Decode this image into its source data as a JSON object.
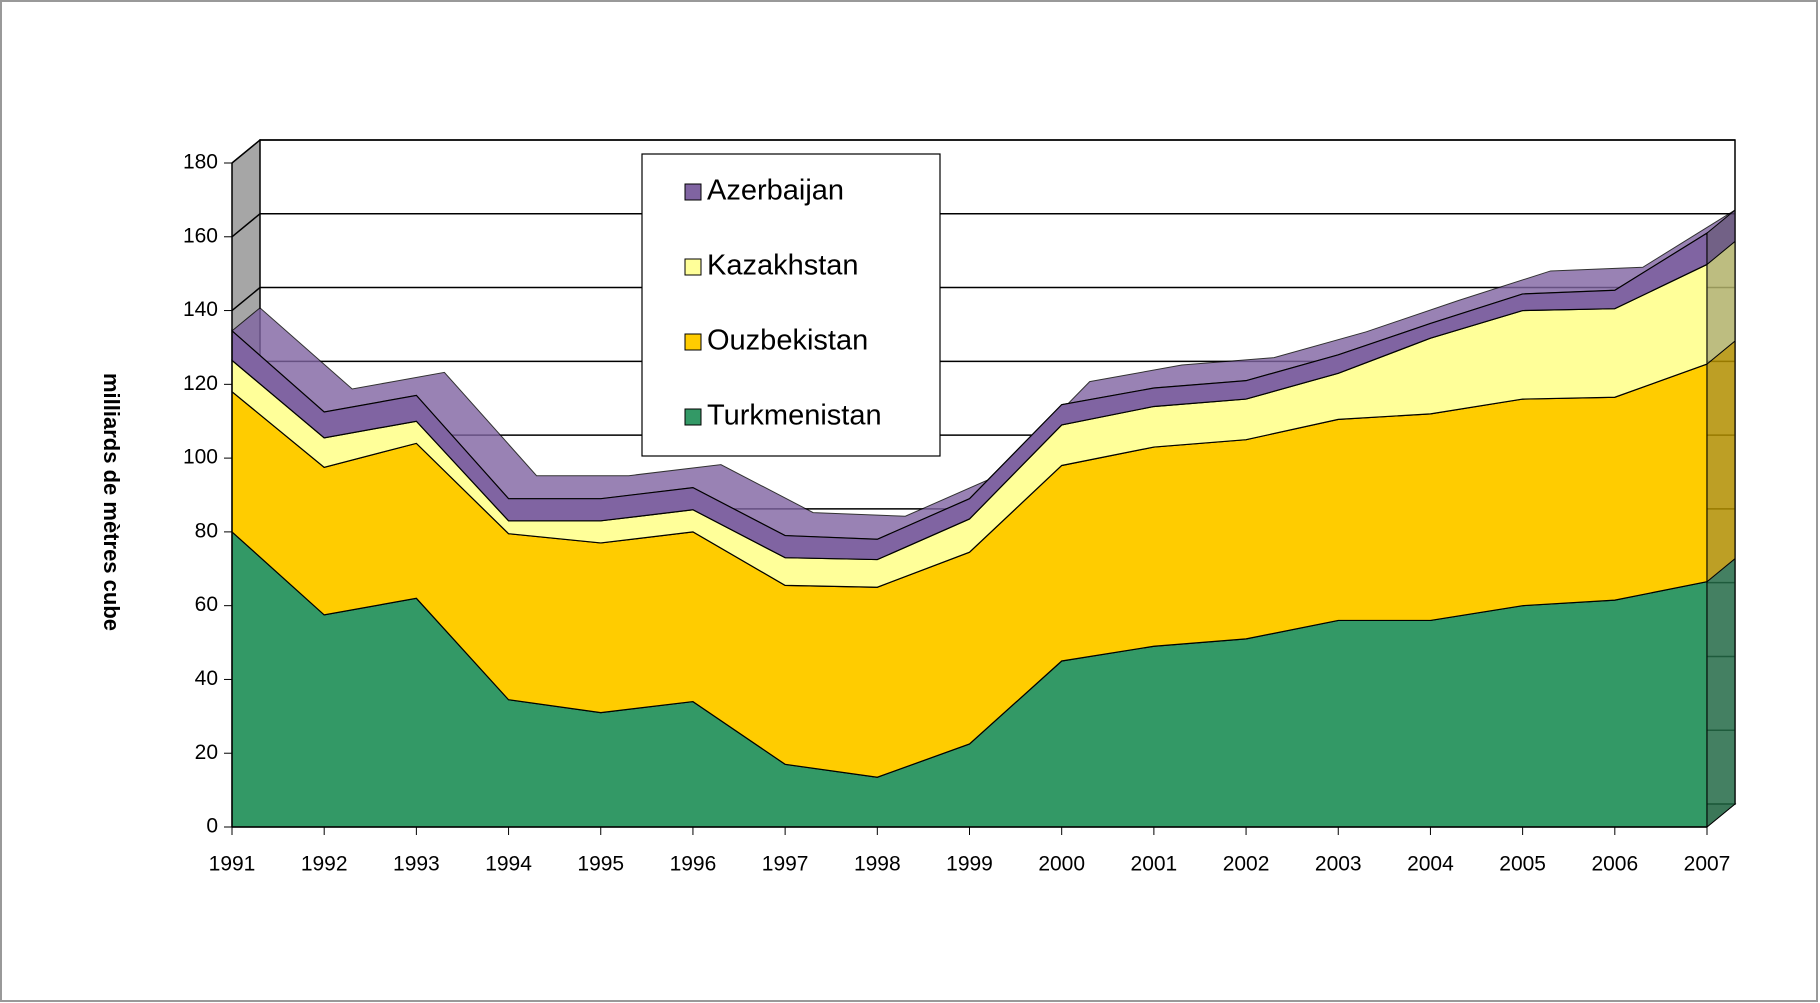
{
  "chart_data": {
    "type": "stacked_area",
    "y_label": "milliards de mètres cube",
    "categories": [
      "1991",
      "1992",
      "1993",
      "1994",
      "1995",
      "1996",
      "1997",
      "1998",
      "1999",
      "2000",
      "2001",
      "2002",
      "2003",
      "2004",
      "2005",
      "2006",
      "2007"
    ],
    "series": [
      {
        "name": "Turkmenistan",
        "color": "#339966",
        "values": [
          80,
          57.5,
          62,
          34.5,
          31,
          34,
          17,
          13.5,
          22.5,
          45,
          49,
          51,
          56,
          56,
          60,
          61.5,
          66.5
        ]
      },
      {
        "name": "Ouzbekistan",
        "color": "#ffcc00",
        "values": [
          38,
          40,
          42,
          45,
          46,
          46,
          48.5,
          51.5,
          52,
          53,
          54,
          54,
          54.5,
          56,
          56,
          55,
          59
        ]
      },
      {
        "name": "Kazakhstan",
        "color": "#ffff99",
        "values": [
          8.5,
          8,
          6,
          3.5,
          6,
          6,
          7.5,
          7.5,
          9,
          11,
          11,
          11,
          12.5,
          20.5,
          24,
          24,
          27
        ]
      },
      {
        "name": "Azerbaijan",
        "color": "#8064a2",
        "values": [
          8,
          7,
          7,
          6,
          6,
          6,
          6,
          5.5,
          5.5,
          5.5,
          5,
          5,
          5,
          4,
          4.5,
          5,
          8.5
        ]
      }
    ],
    "ylim": [
      0,
      180
    ],
    "yticks": [
      0,
      20,
      40,
      60,
      80,
      100,
      120,
      140,
      160,
      180
    ],
    "grid": true
  }
}
